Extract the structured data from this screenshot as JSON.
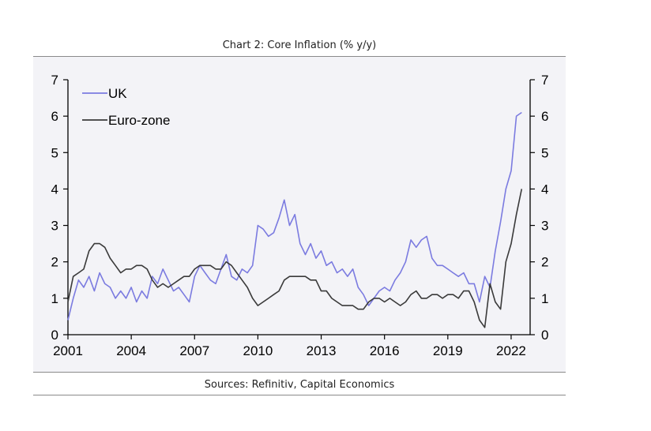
{
  "chart_data": {
    "type": "line",
    "title": "Chart 2: Core Inflation (% y/y)",
    "source": "Sources: Refinitiv, Capital Economics",
    "xlabel": "",
    "ylabel": "",
    "xlim": [
      2001.0,
      2022.9
    ],
    "ylim": [
      0,
      7
    ],
    "x_ticks": [
      2001,
      2004,
      2007,
      2010,
      2013,
      2016,
      2019,
      2022
    ],
    "y_ticks": [
      0,
      1,
      2,
      3,
      4,
      5,
      6,
      7
    ],
    "legend_position": "top-left",
    "colors": {
      "UK": "#7b7be0",
      "Euro-zone": "#3a3a3a"
    },
    "series": [
      {
        "name": "UK",
        "x": [
          2001.0,
          2001.25,
          2001.5,
          2001.75,
          2002.0,
          2002.25,
          2002.5,
          2002.75,
          2003.0,
          2003.25,
          2003.5,
          2003.75,
          2004.0,
          2004.25,
          2004.5,
          2004.75,
          2005.0,
          2005.25,
          2005.5,
          2005.75,
          2006.0,
          2006.25,
          2006.5,
          2006.75,
          2007.0,
          2007.25,
          2007.5,
          2007.75,
          2008.0,
          2008.25,
          2008.5,
          2008.75,
          2009.0,
          2009.25,
          2009.5,
          2009.75,
          2010.0,
          2010.25,
          2010.5,
          2010.75,
          2011.0,
          2011.25,
          2011.5,
          2011.75,
          2012.0,
          2012.25,
          2012.5,
          2012.75,
          2013.0,
          2013.25,
          2013.5,
          2013.75,
          2014.0,
          2014.25,
          2014.5,
          2014.75,
          2015.0,
          2015.25,
          2015.5,
          2015.75,
          2016.0,
          2016.25,
          2016.5,
          2016.75,
          2017.0,
          2017.25,
          2017.5,
          2017.75,
          2018.0,
          2018.25,
          2018.5,
          2018.75,
          2019.0,
          2019.25,
          2019.5,
          2019.75,
          2020.0,
          2020.25,
          2020.5,
          2020.75,
          2021.0,
          2021.25,
          2021.5,
          2021.75,
          2022.0,
          2022.25,
          2022.5
        ],
        "values": [
          0.4,
          1.0,
          1.5,
          1.3,
          1.6,
          1.2,
          1.7,
          1.4,
          1.3,
          1.0,
          1.2,
          1.0,
          1.3,
          0.9,
          1.2,
          1.0,
          1.6,
          1.4,
          1.8,
          1.5,
          1.2,
          1.3,
          1.1,
          0.9,
          1.6,
          1.9,
          1.7,
          1.5,
          1.4,
          1.8,
          2.2,
          1.6,
          1.5,
          1.8,
          1.7,
          1.9,
          3.0,
          2.9,
          2.7,
          2.8,
          3.2,
          3.7,
          3.0,
          3.3,
          2.5,
          2.2,
          2.5,
          2.1,
          2.3,
          1.9,
          2.0,
          1.7,
          1.8,
          1.6,
          1.8,
          1.3,
          1.1,
          0.8,
          1.0,
          1.2,
          1.3,
          1.2,
          1.5,
          1.7,
          2.0,
          2.6,
          2.4,
          2.6,
          2.7,
          2.1,
          1.9,
          1.9,
          1.8,
          1.7,
          1.6,
          1.7,
          1.4,
          1.4,
          0.9,
          1.6,
          1.3,
          2.3,
          3.1,
          4.0,
          4.5,
          6.0,
          6.1
        ]
      },
      {
        "name": "Euro-zone",
        "x": [
          2001.0,
          2001.25,
          2001.5,
          2001.75,
          2002.0,
          2002.25,
          2002.5,
          2002.75,
          2003.0,
          2003.25,
          2003.5,
          2003.75,
          2004.0,
          2004.25,
          2004.5,
          2004.75,
          2005.0,
          2005.25,
          2005.5,
          2005.75,
          2006.0,
          2006.25,
          2006.5,
          2006.75,
          2007.0,
          2007.25,
          2007.5,
          2007.75,
          2008.0,
          2008.25,
          2008.5,
          2008.75,
          2009.0,
          2009.25,
          2009.5,
          2009.75,
          2010.0,
          2010.25,
          2010.5,
          2010.75,
          2011.0,
          2011.25,
          2011.5,
          2011.75,
          2012.0,
          2012.25,
          2012.5,
          2012.75,
          2013.0,
          2013.25,
          2013.5,
          2013.75,
          2014.0,
          2014.25,
          2014.5,
          2014.75,
          2015.0,
          2015.25,
          2015.5,
          2015.75,
          2016.0,
          2016.25,
          2016.5,
          2016.75,
          2017.0,
          2017.25,
          2017.5,
          2017.75,
          2018.0,
          2018.25,
          2018.5,
          2018.75,
          2019.0,
          2019.25,
          2019.5,
          2019.75,
          2020.0,
          2020.25,
          2020.5,
          2020.75,
          2021.0,
          2021.25,
          2021.5,
          2021.75,
          2022.0,
          2022.25,
          2022.5
        ],
        "values": [
          0.9,
          1.6,
          1.7,
          1.8,
          2.3,
          2.5,
          2.5,
          2.4,
          2.1,
          1.9,
          1.7,
          1.8,
          1.8,
          1.9,
          1.9,
          1.8,
          1.5,
          1.3,
          1.4,
          1.3,
          1.4,
          1.5,
          1.6,
          1.6,
          1.8,
          1.9,
          1.9,
          1.9,
          1.8,
          1.8,
          2.0,
          1.9,
          1.7,
          1.5,
          1.3,
          1.0,
          0.8,
          0.9,
          1.0,
          1.1,
          1.2,
          1.5,
          1.6,
          1.6,
          1.6,
          1.6,
          1.5,
          1.5,
          1.2,
          1.2,
          1.0,
          0.9,
          0.8,
          0.8,
          0.8,
          0.7,
          0.7,
          0.9,
          1.0,
          1.0,
          0.9,
          1.0,
          0.9,
          0.8,
          0.9,
          1.1,
          1.2,
          1.0,
          1.0,
          1.1,
          1.1,
          1.0,
          1.1,
          1.1,
          1.0,
          1.2,
          1.2,
          0.9,
          0.4,
          0.2,
          1.4,
          0.9,
          0.7,
          2.0,
          2.5,
          3.3,
          4.0
        ]
      }
    ]
  }
}
